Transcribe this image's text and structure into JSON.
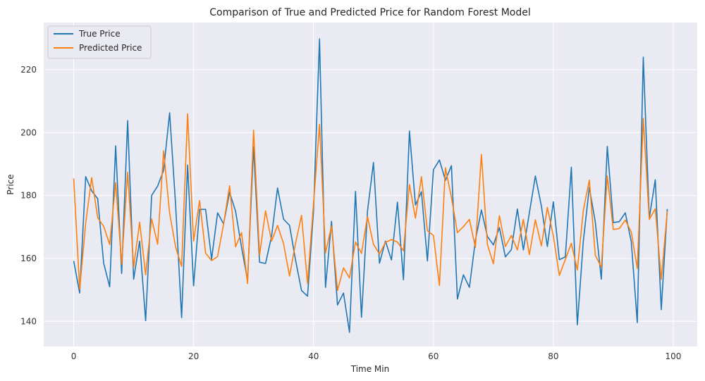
{
  "chart_data": {
    "type": "line",
    "title": "Comparison of True and Predicted Price for Random Forest Model",
    "xlabel": "Time Min",
    "ylabel": "Price",
    "xlim": [
      -5,
      104
    ],
    "ylim": [
      132,
      235
    ],
    "xticks": [
      0,
      20,
      40,
      60,
      80,
      100
    ],
    "yticks": [
      140,
      160,
      180,
      200,
      220
    ],
    "grid": true,
    "legend_position": "upper-left",
    "x": [
      0,
      1,
      2,
      3,
      4,
      5,
      6,
      7,
      8,
      9,
      10,
      11,
      12,
      13,
      14,
      15,
      16,
      17,
      18,
      19,
      20,
      21,
      22,
      23,
      24,
      25,
      26,
      27,
      28,
      29,
      30,
      31,
      32,
      33,
      34,
      35,
      36,
      37,
      38,
      39,
      40,
      41,
      42,
      43,
      44,
      45,
      46,
      47,
      48,
      49,
      50,
      51,
      52,
      53,
      54,
      55,
      56,
      57,
      58,
      59,
      60,
      61,
      62,
      63,
      64,
      65,
      66,
      67,
      68,
      69,
      70,
      71,
      72,
      73,
      74,
      75,
      76,
      77,
      78,
      79,
      80,
      81,
      82,
      83,
      84,
      85,
      86,
      87,
      88,
      89,
      90,
      91,
      92,
      93,
      94,
      95,
      96,
      97,
      98,
      99
    ],
    "series": [
      {
        "name": "True Price",
        "color": "#1f77b4",
        "values": [
          159.2,
          149.0,
          186.0,
          181.5,
          179.0,
          158.5,
          151.0,
          195.8,
          155.2,
          203.8,
          153.4,
          165.5,
          140.2,
          180.0,
          183.0,
          188.0,
          206.3,
          177.0,
          141.2,
          189.7,
          151.3,
          175.6,
          175.6,
          159.8,
          174.5,
          171.0,
          181.0,
          175.0,
          163.5,
          153.0,
          195.5,
          158.8,
          158.4,
          167.0,
          182.4,
          172.5,
          170.5,
          159.5,
          149.8,
          148.0,
          175.0,
          229.8,
          150.8,
          171.8,
          145.2,
          149.0,
          136.5,
          181.3,
          141.3,
          175.0,
          190.5,
          158.5,
          165.5,
          159.5,
          177.9,
          153.2,
          200.5,
          177.0,
          181.2,
          159.2,
          188.2,
          191.3,
          184.8,
          189.5,
          147.1,
          154.8,
          150.8,
          165.8,
          175.4,
          167.0,
          164.3,
          169.8,
          160.5,
          162.8,
          175.7,
          162.7,
          174.5,
          186.2,
          176.7,
          163.8,
          178.0,
          159.6,
          160.5,
          189.0,
          138.9,
          165.5,
          182.6,
          171.5,
          153.4,
          195.6,
          171.4,
          171.7,
          174.5,
          165.3,
          139.6,
          224.0,
          172.8,
          185.0,
          143.7,
          175.7
        ]
      },
      {
        "name": "Predicted Price",
        "color": "#ff7f0e",
        "values": [
          185.4,
          150.2,
          171.2,
          185.7,
          173.0,
          170.2,
          164.4,
          184.1,
          158.2,
          187.4,
          157.2,
          171.5,
          154.8,
          172.6,
          164.5,
          194.2,
          174.4,
          163.6,
          157.5,
          206.0,
          165.5,
          178.4,
          161.7,
          159.3,
          160.6,
          170.9,
          183.1,
          163.7,
          168.2,
          152.0,
          200.8,
          161.0,
          175.1,
          165.5,
          170.5,
          164.7,
          154.4,
          164.8,
          173.7,
          152.0,
          177.4,
          202.6,
          161.8,
          170.3,
          149.8,
          157.0,
          153.8,
          165.2,
          161.6,
          173.3,
          164.5,
          161.4,
          165.1,
          166.0,
          165.2,
          162.4,
          183.5,
          172.8,
          186.0,
          168.8,
          167.3,
          151.4,
          188.8,
          179.4,
          168.2,
          170.1,
          172.4,
          163.5,
          193.1,
          164.4,
          158.3,
          173.6,
          163.8,
          167.3,
          162.7,
          172.4,
          161.2,
          172.3,
          164.0,
          176.2,
          167.1,
          154.6,
          159.7,
          164.8,
          156.3,
          175.3,
          184.9,
          161.0,
          157.2,
          186.2,
          169.2,
          169.5,
          172.2,
          168.4,
          156.8,
          204.5,
          172.4,
          175.8,
          153.3,
          175.0
        ]
      }
    ]
  }
}
